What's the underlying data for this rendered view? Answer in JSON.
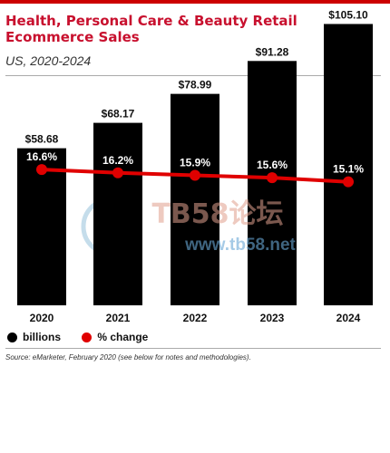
{
  "header": {
    "title": "Health, Personal Care & Beauty Retail Ecommerce Sales",
    "subtitle": "US, 2020-2024"
  },
  "chart_data": {
    "type": "bar",
    "categories": [
      "2020",
      "2021",
      "2022",
      "2023",
      "2024"
    ],
    "series": [
      {
        "name": "billions",
        "kind": "bar",
        "values": [
          58.68,
          68.17,
          78.99,
          91.28,
          105.1
        ],
        "labels": [
          "$58.68",
          "$68.17",
          "$78.99",
          "$91.28",
          "$105.10"
        ],
        "color": "#000000"
      },
      {
        "name": "% change",
        "kind": "line",
        "values": [
          16.6,
          16.2,
          15.9,
          15.6,
          15.1
        ],
        "labels": [
          "16.6%",
          "16.2%",
          "15.9%",
          "15.6%",
          "15.1%"
        ],
        "color": "#e00000"
      }
    ],
    "ylim": [
      0,
      110
    ],
    "ylim_change": [
      0,
      36
    ],
    "grid": false,
    "legend_position": "bottom-left"
  },
  "legend": {
    "bars_label": "billions",
    "line_label": "% change"
  },
  "footer": {
    "source": "Source: eMarketer, February 2020 (see below for notes and methodologies)."
  },
  "watermark": {
    "brand": "TB58论坛",
    "url": "www.tb58.net"
  }
}
